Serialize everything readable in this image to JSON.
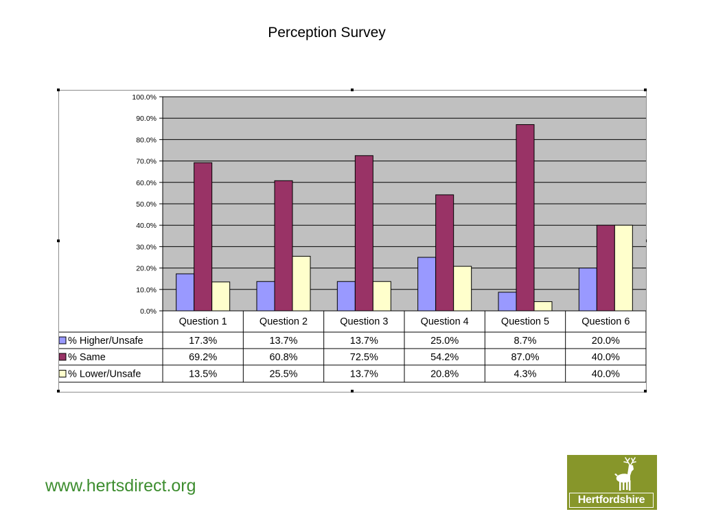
{
  "slide": {
    "title": "Perception Survey",
    "url": "www.hertsdirect.org",
    "logo_text": "Hertfordshire"
  },
  "colors": {
    "plot_area": "#c0c0c0",
    "higher": "#9999ff",
    "same": "#993366",
    "lower": "#ffffcc",
    "url": "#3d8d2f",
    "logo_bg": "#87962a"
  },
  "chart_data": {
    "type": "bar",
    "categories": [
      "Question 1",
      "Question 2",
      "Question 3",
      "Question 4",
      "Question 5",
      "Question 6"
    ],
    "series": [
      {
        "name": "%  Higher/Unsafe",
        "values": [
          17.3,
          13.7,
          13.7,
          25.0,
          8.7,
          20.0
        ],
        "labels": [
          "17.3%",
          "13.7%",
          "13.7%",
          "25.0%",
          "8.7%",
          "20.0%"
        ],
        "color": "#9999ff"
      },
      {
        "name": "%  Same",
        "values": [
          69.2,
          60.8,
          72.5,
          54.2,
          87.0,
          40.0
        ],
        "labels": [
          "69.2%",
          "60.8%",
          "72.5%",
          "54.2%",
          "87.0%",
          "40.0%"
        ],
        "color": "#993366"
      },
      {
        "name": "% Lower/Unsafe",
        "values": [
          13.5,
          25.5,
          13.7,
          20.8,
          4.3,
          40.0
        ],
        "labels": [
          "13.5%",
          "25.5%",
          "13.7%",
          "20.8%",
          "4.3%",
          "40.0%"
        ],
        "color": "#ffffcc"
      }
    ],
    "ylim": [
      0,
      100
    ],
    "yticks": [
      "0.0%",
      "10.0%",
      "20.0%",
      "30.0%",
      "40.0%",
      "50.0%",
      "60.0%",
      "70.0%",
      "80.0%",
      "90.0%",
      "100.0%"
    ],
    "grid": true,
    "legend": "data-table"
  }
}
